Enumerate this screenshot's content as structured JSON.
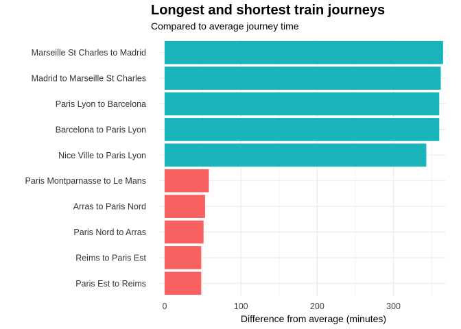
{
  "chart_data": {
    "type": "bar",
    "orientation": "horizontal",
    "title": "Longest and shortest train journeys",
    "subtitle": "Compared to average journey time",
    "xlabel": "Difference from average (minutes)",
    "ylabel": "",
    "xlim": [
      0,
      367
    ],
    "xticks": [
      0,
      100,
      200,
      300
    ],
    "grid": true,
    "categories": [
      "Marseille St Charles to Madrid",
      "Madrid to Marseille St Charles",
      "Paris Lyon to Barcelona",
      "Barcelona to Paris Lyon",
      "Nice Ville to Paris Lyon",
      "Paris Montparnasse to Le Mans",
      "Arras to Paris Nord",
      "Paris Nord to Arras",
      "Reims to Paris Est",
      "Paris Est to Reims"
    ],
    "values": [
      365,
      362,
      360,
      360,
      343,
      58,
      53,
      51,
      48,
      48
    ],
    "bar_colors": [
      "#19B5BA",
      "#19B5BA",
      "#19B5BA",
      "#19B5BA",
      "#19B5BA",
      "#F8615F",
      "#F8615F",
      "#F8615F",
      "#F8615F",
      "#F8615F"
    ],
    "gridline_color": "#EBEBEB"
  }
}
